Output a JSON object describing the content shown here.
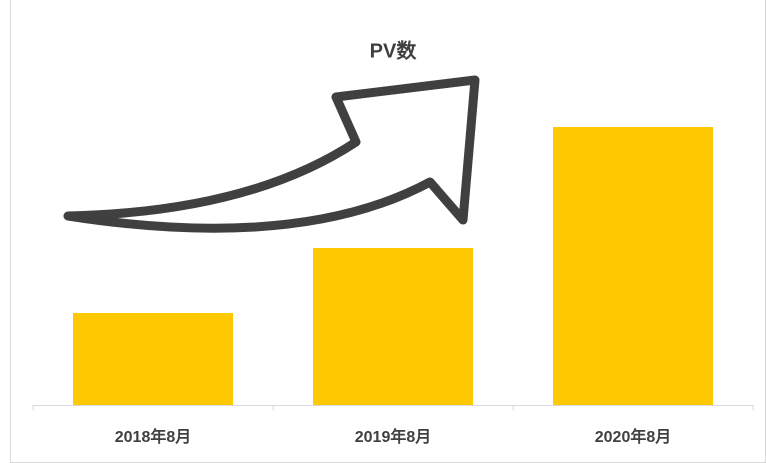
{
  "chart_data": {
    "type": "bar",
    "title": "PV数",
    "categories": [
      "2018年8月",
      "2019年8月",
      "2020年8月"
    ],
    "values": [
      92,
      157,
      278
    ],
    "color": "#ffc800",
    "ylim": [
      0,
      300
    ],
    "grid": false
  }
}
